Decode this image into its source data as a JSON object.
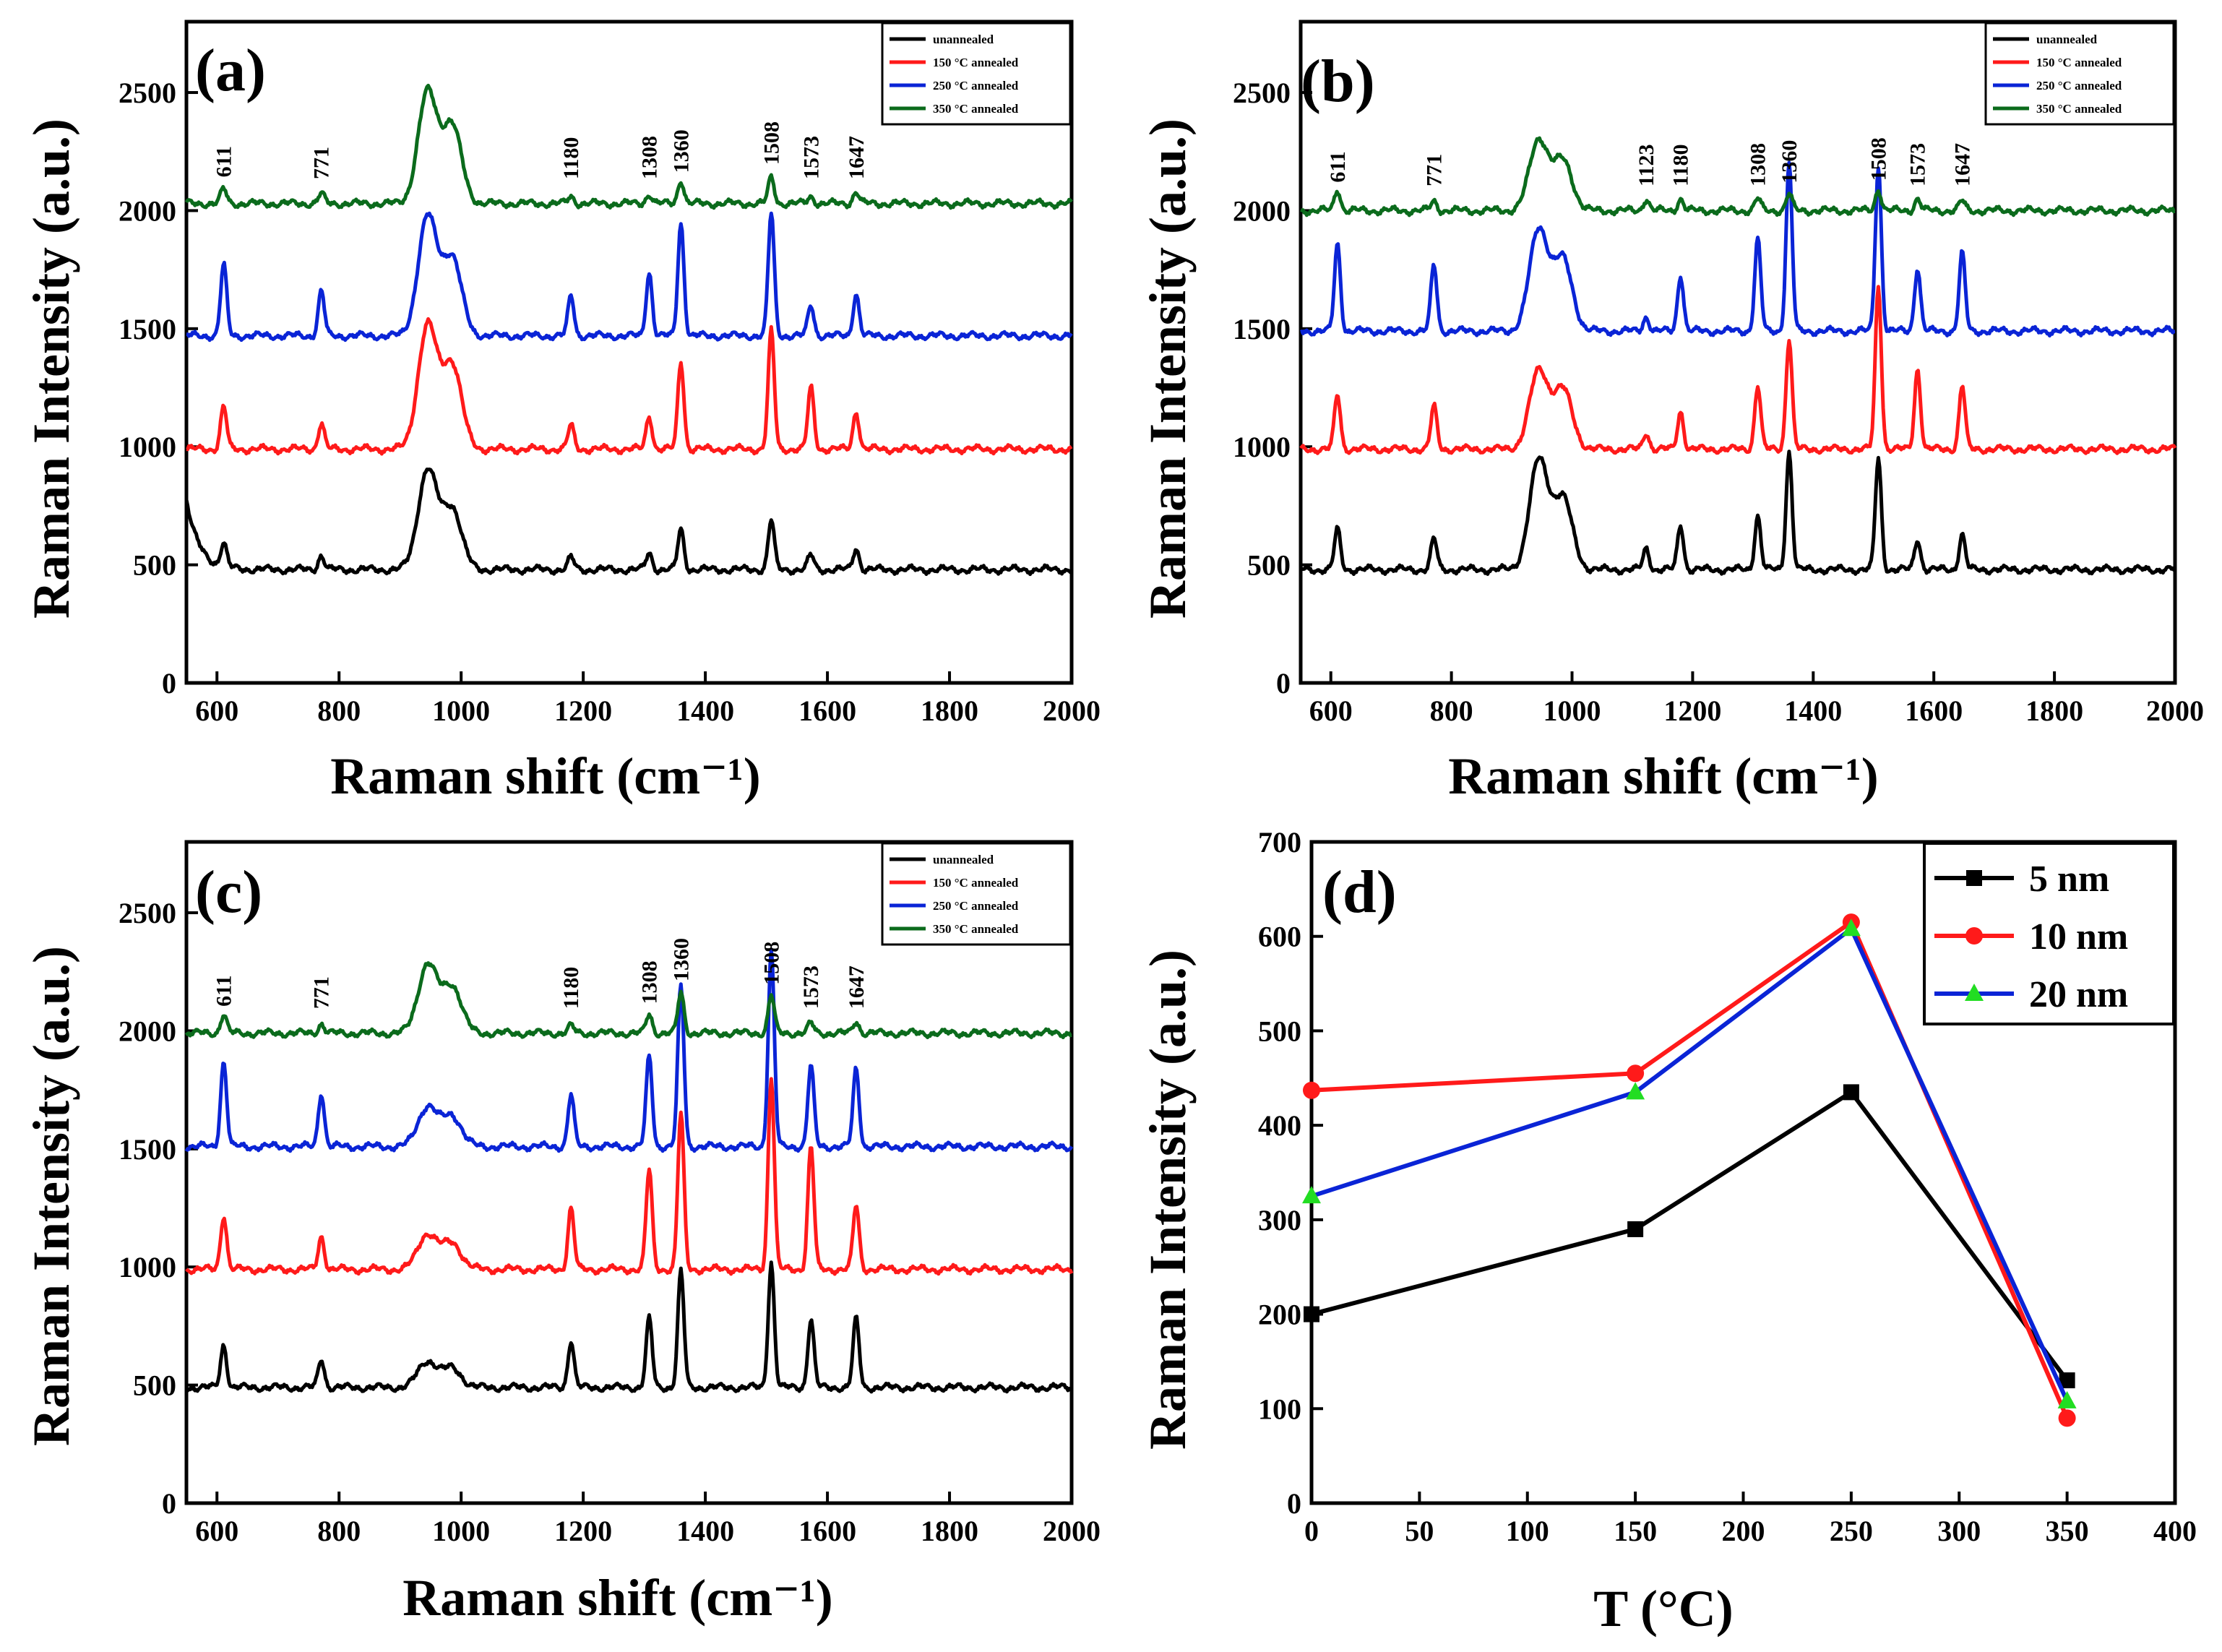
{
  "colors": {
    "unannealed": "#000000",
    "annealed_150": "#ff1a1a",
    "annealed_250": "#0a24d6",
    "annealed_350": "#0b6b1c",
    "series_5nm": "#000000",
    "series_10nm": "#ff1a1a",
    "series_20nm": "#0a24d6",
    "marker_20nm": "#22dd22"
  },
  "chart_data": [
    {
      "type": "line",
      "panel": "(a)",
      "title": "",
      "xlabel": "Raman shift (cm⁻¹)",
      "ylabel": "Raman Intensity (a.u.)",
      "xlim": [
        550,
        2000
      ],
      "ylim": [
        0,
        2800
      ],
      "xticks": [
        600,
        800,
        1000,
        1200,
        1400,
        1600,
        1800,
        2000
      ],
      "yticks": [
        0,
        500,
        1000,
        1500,
        2000,
        2500
      ],
      "legend": [
        "unannealed",
        "150 °C annealed",
        "250 °C annealed",
        "350 °C annealed"
      ],
      "legend_position": "top-right",
      "peak_labels": [
        "611",
        "771",
        "1180",
        "1308",
        "1360",
        "1508",
        "1573",
        "1647"
      ],
      "series": [
        {
          "name": "unannealed",
          "baseline": 480,
          "start_rise": 300,
          "peaks": [
            [
              611,
              100
            ],
            [
              771,
              60
            ],
            [
              945,
              420
            ],
            [
              985,
              260
            ],
            [
              1180,
              50
            ],
            [
              1308,
              70
            ],
            [
              1360,
              170
            ],
            [
              1508,
              210
            ],
            [
              1573,
              60
            ],
            [
              1647,
              90
            ]
          ]
        },
        {
          "name": "150 °C annealed",
          "baseline": 990,
          "peaks": [
            [
              611,
              180
            ],
            [
              771,
              110
            ],
            [
              945,
              520
            ],
            [
              985,
              360
            ],
            [
              1180,
              100
            ],
            [
              1308,
              140
            ],
            [
              1360,
              370
            ],
            [
              1508,
              500
            ],
            [
              1573,
              260
            ],
            [
              1647,
              160
            ]
          ]
        },
        {
          "name": "250 °C annealed",
          "baseline": 1470,
          "peaks": [
            [
              611,
              300
            ],
            [
              771,
              190
            ],
            [
              945,
              500
            ],
            [
              985,
              330
            ],
            [
              1180,
              170
            ],
            [
              1308,
              270
            ],
            [
              1360,
              480
            ],
            [
              1508,
              520
            ],
            [
              1573,
              130
            ],
            [
              1647,
              180
            ]
          ]
        },
        {
          "name": "350 °C annealed",
          "baseline": 2030,
          "peaks": [
            [
              611,
              60
            ],
            [
              771,
              40
            ],
            [
              945,
              470
            ],
            [
              985,
              330
            ],
            [
              1180,
              30
            ],
            [
              1308,
              40
            ],
            [
              1360,
              100
            ],
            [
              1508,
              110
            ],
            [
              1573,
              30
            ],
            [
              1647,
              50
            ]
          ]
        }
      ]
    },
    {
      "type": "line",
      "panel": "(b)",
      "title": "",
      "xlabel": "Raman shift (cm⁻¹)",
      "ylabel": "Raman Intensity (a.u.)",
      "xlim": [
        550,
        2000
      ],
      "ylim": [
        0,
        2800
      ],
      "xticks": [
        600,
        800,
        1000,
        1200,
        1400,
        1600,
        1800,
        2000
      ],
      "yticks": [
        0,
        500,
        1000,
        1500,
        2000,
        2500
      ],
      "legend": [
        "unannealed",
        "150 °C annealed",
        "250 °C annealed",
        "350 °C annealed"
      ],
      "legend_position": "top-right",
      "peak_labels": [
        "611",
        "771",
        "1123",
        "1180",
        "1308",
        "1360",
        "1508",
        "1573",
        "1647"
      ],
      "series": [
        {
          "name": "unannealed",
          "baseline": 480,
          "peaks": [
            [
              611,
              170
            ],
            [
              771,
              130
            ],
            [
              945,
              460
            ],
            [
              985,
              300
            ],
            [
              1123,
              90
            ],
            [
              1180,
              190
            ],
            [
              1308,
              230
            ],
            [
              1360,
              500
            ],
            [
              1508,
              470
            ],
            [
              1573,
              130
            ],
            [
              1647,
              150
            ]
          ]
        },
        {
          "name": "150 °C annealed",
          "baseline": 990,
          "peaks": [
            [
              611,
              230
            ],
            [
              771,
              180
            ],
            [
              945,
              330
            ],
            [
              985,
              250
            ],
            [
              1123,
              70
            ],
            [
              1180,
              160
            ],
            [
              1308,
              270
            ],
            [
              1360,
              470
            ],
            [
              1508,
              690
            ],
            [
              1573,
              340
            ],
            [
              1647,
              270
            ]
          ]
        },
        {
          "name": "250 °C annealed",
          "baseline": 1490,
          "peaks": [
            [
              611,
              370
            ],
            [
              771,
              280
            ],
            [
              945,
              430
            ],
            [
              985,
              300
            ],
            [
              1123,
              60
            ],
            [
              1180,
              240
            ],
            [
              1308,
              390
            ],
            [
              1360,
              710
            ],
            [
              1508,
              700
            ],
            [
              1573,
              270
            ],
            [
              1647,
              330
            ]
          ]
        },
        {
          "name": "350 °C annealed",
          "baseline": 2000,
          "peaks": [
            [
              611,
              90
            ],
            [
              771,
              40
            ],
            [
              945,
              300
            ],
            [
              985,
              210
            ],
            [
              1123,
              50
            ],
            [
              1180,
              50
            ],
            [
              1308,
              50
            ],
            [
              1360,
              70
            ],
            [
              1508,
              90
            ],
            [
              1573,
              50
            ],
            [
              1647,
              40
            ]
          ]
        }
      ]
    },
    {
      "type": "line",
      "panel": "(c)",
      "title": "",
      "xlabel": "Raman shift (cm⁻¹)",
      "ylabel": "Raman Intensity (a.u.)",
      "xlim": [
        550,
        2000
      ],
      "ylim": [
        0,
        2800
      ],
      "xticks": [
        600,
        800,
        1000,
        1200,
        1400,
        1600,
        1800,
        2000
      ],
      "yticks": [
        0,
        500,
        1000,
        1500,
        2000,
        2500
      ],
      "legend": [
        "unannealed",
        "150 °C annealed",
        "250 °C annealed",
        "350 °C annealed"
      ],
      "legend_position": "top-right",
      "peak_labels": [
        "611",
        "771",
        "1180",
        "1308",
        "1360",
        "1508",
        "1573",
        "1647"
      ],
      "series": [
        {
          "name": "unannealed",
          "baseline": 490,
          "peaks": [
            [
              611,
              180
            ],
            [
              771,
              120
            ],
            [
              945,
              110
            ],
            [
              985,
              80
            ],
            [
              1180,
              200
            ],
            [
              1308,
              290
            ],
            [
              1360,
              490
            ],
            [
              1508,
              530
            ],
            [
              1573,
              290
            ],
            [
              1647,
              290
            ]
          ]
        },
        {
          "name": "150 °C annealed",
          "baseline": 990,
          "peaks": [
            [
              611,
              230
            ],
            [
              771,
              140
            ],
            [
              945,
              150
            ],
            [
              985,
              110
            ],
            [
              1180,
              260
            ],
            [
              1308,
              420
            ],
            [
              1360,
              660
            ],
            [
              1508,
              820
            ],
            [
              1573,
              520
            ],
            [
              1647,
              270
            ]
          ]
        },
        {
          "name": "250 °C annealed",
          "baseline": 1510,
          "peaks": [
            [
              611,
              360
            ],
            [
              771,
              230
            ],
            [
              945,
              170
            ],
            [
              985,
              130
            ],
            [
              1180,
              220
            ],
            [
              1308,
              380
            ],
            [
              1360,
              680
            ],
            [
              1508,
              830
            ],
            [
              1573,
              340
            ],
            [
              1647,
              330
            ]
          ]
        },
        {
          "name": "350 °C annealed",
          "baseline": 1990,
          "peaks": [
            [
              611,
              80
            ],
            [
              771,
              40
            ],
            [
              945,
              290
            ],
            [
              985,
              200
            ],
            [
              1180,
              30
            ],
            [
              1308,
              80
            ],
            [
              1360,
              170
            ],
            [
              1508,
              160
            ],
            [
              1573,
              40
            ],
            [
              1647,
              50
            ]
          ]
        }
      ]
    },
    {
      "type": "line",
      "panel": "(d)",
      "title": "",
      "xlabel": "T (°C)",
      "ylabel": "Raman Intensity (a.u.)",
      "xlim": [
        0,
        400
      ],
      "ylim": [
        0,
        700
      ],
      "xticks": [
        0,
        50,
        100,
        150,
        200,
        250,
        300,
        350,
        400
      ],
      "yticks": [
        0,
        100,
        200,
        300,
        400,
        500,
        600,
        700
      ],
      "legend_position": "top-right",
      "x": [
        0,
        150,
        250,
        350
      ],
      "series": [
        {
          "name": "5 nm",
          "marker": "square",
          "values": [
            200,
            290,
            435,
            130
          ]
        },
        {
          "name": "10 nm",
          "marker": "circle",
          "values": [
            437,
            455,
            615,
            90
          ]
        },
        {
          "name": "20 nm",
          "marker": "triangle",
          "values": [
            325,
            435,
            608,
            108
          ]
        }
      ]
    }
  ]
}
